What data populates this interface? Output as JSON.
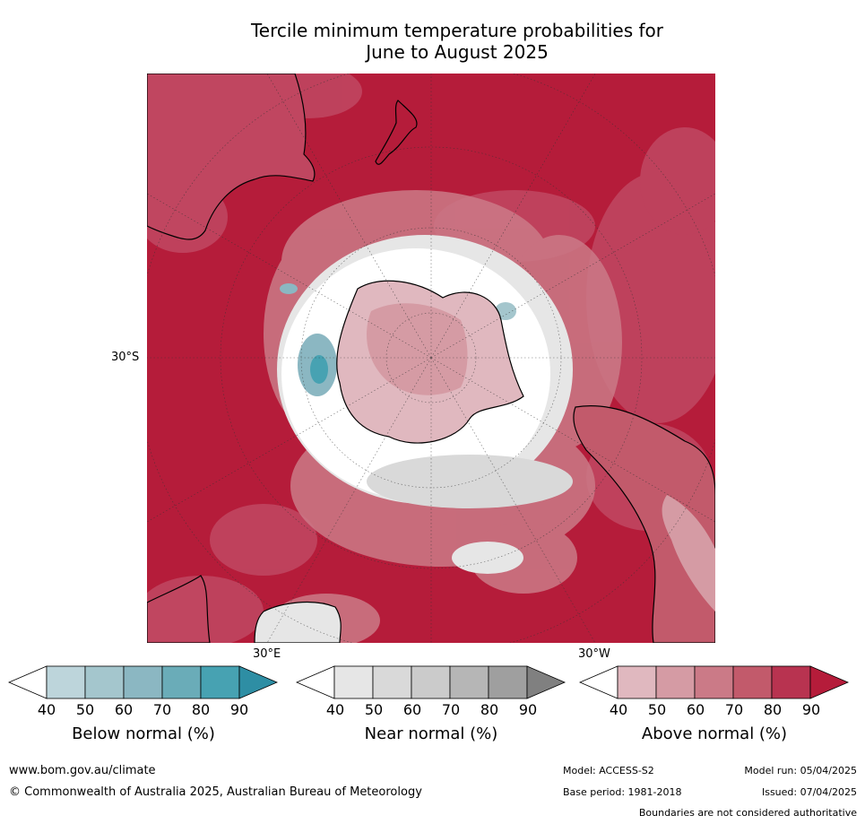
{
  "title_line1": "Tercile minimum temperature probabilities for",
  "title_line2": "June to August 2025",
  "map": {
    "projection": "south-polar-stereographic",
    "lat_label": "30°S",
    "lon_label_east": "30°E",
    "lon_label_west": "30°W",
    "background_color": "#b51c3a"
  },
  "colorbars": [
    {
      "key": "below",
      "title": "Below normal (%)",
      "ticks": [
        "40",
        "50",
        "60",
        "70",
        "80",
        "90"
      ],
      "colors": [
        "#ffffff",
        "#bdd5db",
        "#a4c6cd",
        "#8bb7c2",
        "#6aacb8",
        "#47a2b2",
        "#2e8ea4"
      ]
    },
    {
      "key": "near",
      "title": "Near normal (%)",
      "ticks": [
        "40",
        "50",
        "60",
        "70",
        "80",
        "90"
      ],
      "colors": [
        "#ffffff",
        "#e6e6e6",
        "#d9d9d9",
        "#cbcbcb",
        "#b6b6b6",
        "#9f9f9f",
        "#808080"
      ]
    },
    {
      "key": "above",
      "title": "Above normal (%)",
      "ticks": [
        "40",
        "50",
        "60",
        "70",
        "80",
        "90"
      ],
      "colors": [
        "#ffffff",
        "#e0b8bf",
        "#d59ba4",
        "#cb7a87",
        "#c25a6b",
        "#b83350",
        "#b51c3a"
      ]
    }
  ],
  "footer": {
    "website": "www.bom.gov.au/climate",
    "copyright": "© Commonwealth of Australia 2025, Australian Bureau of Meteorology",
    "model": "Model: ACCESS-S2",
    "model_run": "Model run: 05/04/2025",
    "base_period": "Base period: 1981-2018",
    "issued": "Issued: 07/04/2025",
    "disclaimer": "Boundaries are not considered authoritative"
  }
}
